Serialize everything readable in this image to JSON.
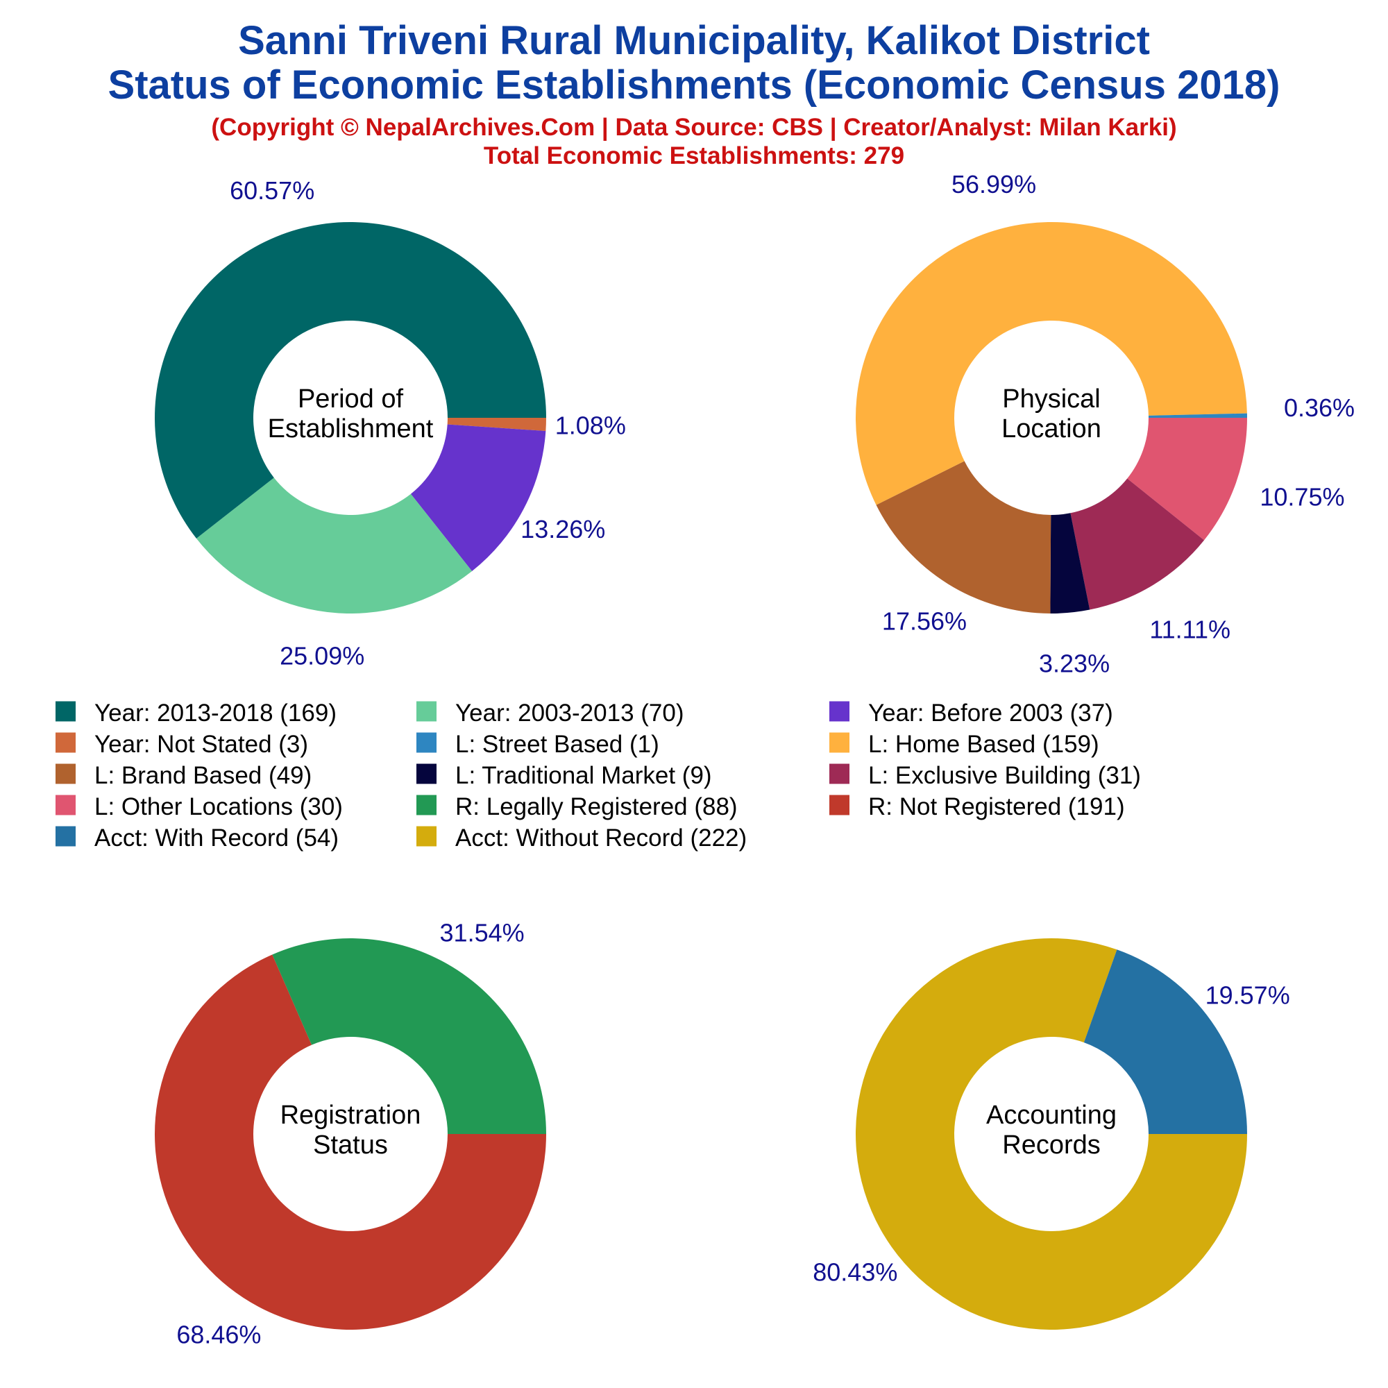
{
  "header": {
    "title_line1": "Sanni Triveni Rural Municipality, Kalikot District",
    "title_line2": "Status of Economic Establishments (Economic Census 2018)",
    "subtitle_line1": "(Copyright © NepalArchives.Com | Data Source: CBS | Creator/Analyst: Milan Karki)",
    "subtitle_line2": "Total Economic Establishments: 279"
  },
  "chart_data": [
    {
      "type": "pie",
      "donut": true,
      "center_label": [
        "Period of",
        "Establishment"
      ],
      "start_angle_deg": 0,
      "direction": "clockwise",
      "slices": [
        {
          "label": "Year: Not Stated",
          "value": 3,
          "percent": 1.08,
          "percent_label": "1.08%",
          "color": "#d0683a"
        },
        {
          "label": "Year: Before 2003",
          "value": 37,
          "percent": 13.26,
          "percent_label": "13.26%",
          "color": "#6633cc"
        },
        {
          "label": "Year: 2003-2013",
          "value": 70,
          "percent": 25.09,
          "percent_label": "25.09%",
          "color": "#66cc99"
        },
        {
          "label": "Year: 2013-2018",
          "value": 169,
          "percent": 60.57,
          "percent_label": "60.57%",
          "color": "#006666"
        }
      ]
    },
    {
      "type": "pie",
      "donut": true,
      "center_label": [
        "Physical",
        "Location"
      ],
      "start_angle_deg": 0,
      "direction": "clockwise",
      "slices": [
        {
          "label": "L: Other Locations",
          "value": 30,
          "percent": 10.75,
          "percent_label": "10.75%",
          "color": "#e05570"
        },
        {
          "label": "L: Exclusive Building",
          "value": 31,
          "percent": 11.11,
          "percent_label": "11.11%",
          "color": "#9e2a55"
        },
        {
          "label": "L: Traditional Market",
          "value": 9,
          "percent": 3.23,
          "percent_label": "3.23%",
          "color": "#05053d"
        },
        {
          "label": "L: Brand Based",
          "value": 49,
          "percent": 17.56,
          "percent_label": "17.56%",
          "color": "#b0622e"
        },
        {
          "label": "L: Home Based",
          "value": 159,
          "percent": 56.99,
          "percent_label": "56.99%",
          "color": "#ffb13e"
        },
        {
          "label": "L: Street Based",
          "value": 1,
          "percent": 0.36,
          "percent_label": "0.36%",
          "color": "#2e86c1"
        }
      ]
    },
    {
      "type": "pie",
      "donut": true,
      "center_label": [
        "Registration",
        "Status"
      ],
      "start_angle_deg": 0,
      "direction": "clockwise",
      "slices": [
        {
          "label": "R: Not Registered",
          "value": 191,
          "percent": 68.46,
          "percent_label": "68.46%",
          "color": "#c0392b"
        },
        {
          "label": "R: Legally Registered",
          "value": 88,
          "percent": 31.54,
          "percent_label": "31.54%",
          "color": "#229954"
        }
      ]
    },
    {
      "type": "pie",
      "donut": true,
      "center_label": [
        "Accounting",
        "Records"
      ],
      "start_angle_deg": 0,
      "direction": "clockwise",
      "slices": [
        {
          "label": "Acct: Without Record",
          "value": 222,
          "percent": 80.43,
          "percent_label": "80.43%",
          "color": "#d4ac0d"
        },
        {
          "label": "Acct: With Record",
          "value": 54,
          "percent": 19.57,
          "percent_label": "19.57%",
          "color": "#2471a3"
        }
      ]
    }
  ],
  "legend": {
    "columns": 3,
    "items": [
      {
        "label": "Year: 2013-2018 (169)",
        "color": "#006666"
      },
      {
        "label": "Year: 2003-2013 (70)",
        "color": "#66cc99"
      },
      {
        "label": "Year: Before 2003 (37)",
        "color": "#6633cc"
      },
      {
        "label": "Year: Not Stated (3)",
        "color": "#d0683a"
      },
      {
        "label": "L: Street Based (1)",
        "color": "#2e86c1"
      },
      {
        "label": "L: Home Based (159)",
        "color": "#ffb13e"
      },
      {
        "label": "L: Brand Based (49)",
        "color": "#b0622e"
      },
      {
        "label": "L: Traditional Market (9)",
        "color": "#05053d"
      },
      {
        "label": "L: Exclusive Building (31)",
        "color": "#9e2a55"
      },
      {
        "label": "L: Other Locations (30)",
        "color": "#e05570"
      },
      {
        "label": "R: Legally Registered (88)",
        "color": "#229954"
      },
      {
        "label": "R: Not Registered (191)",
        "color": "#c0392b"
      },
      {
        "label": "Acct: With Record (54)",
        "color": "#2471a3"
      },
      {
        "label": "Acct: Without Record (222)",
        "color": "#d4ac0d"
      }
    ]
  }
}
